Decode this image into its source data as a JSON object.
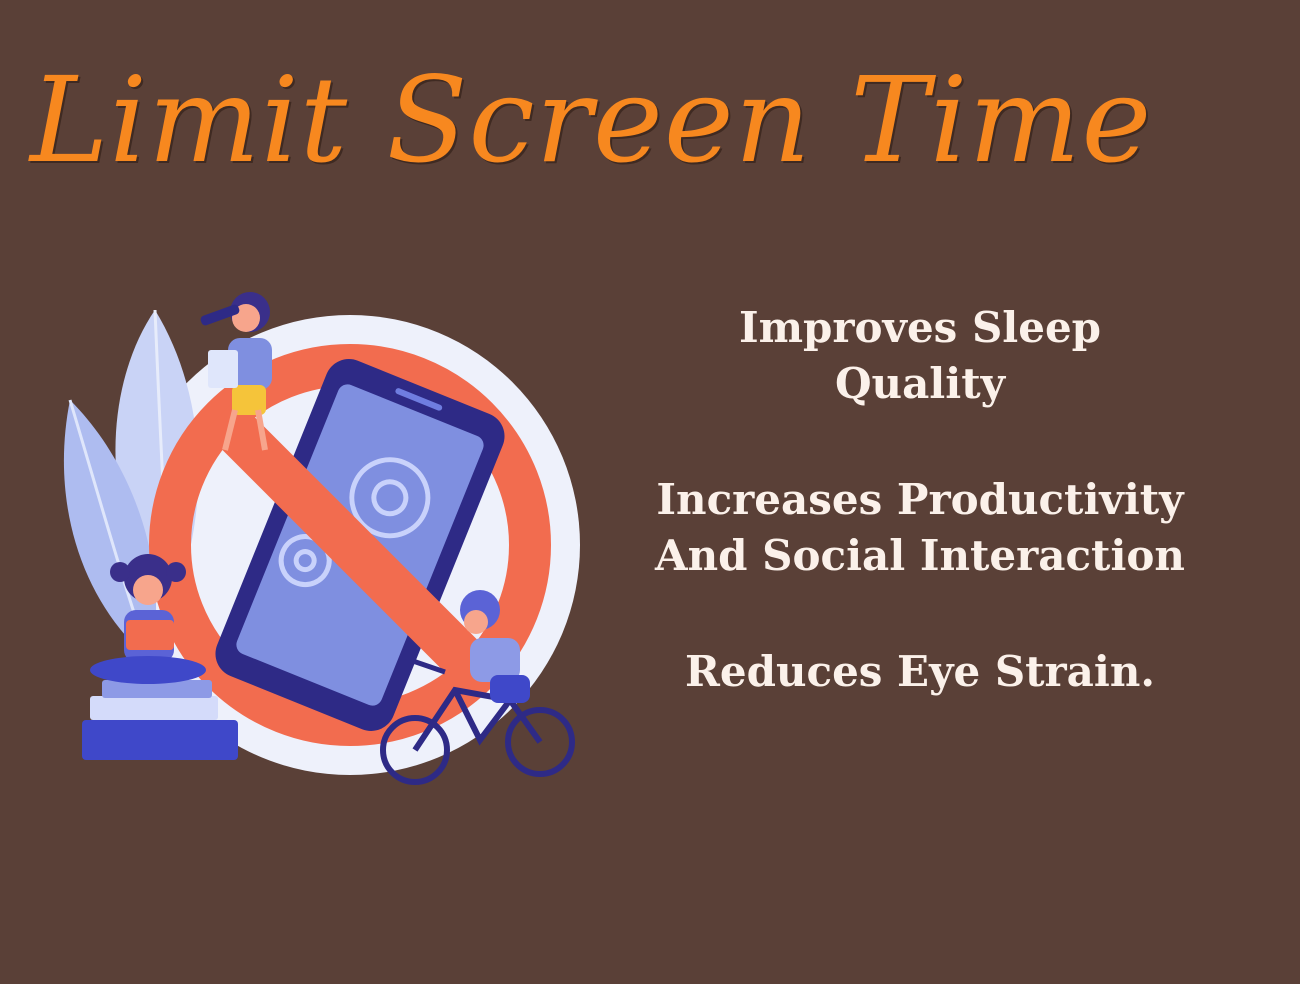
{
  "title": "Limit Screen Time",
  "benefits": [
    {
      "lines": [
        "Improves Sleep",
        "Quality"
      ]
    },
    {
      "lines": [
        "Increases Productivity",
        "And Social Interaction"
      ]
    },
    {
      "lines": [
        "Reduces Eye Strain."
      ]
    }
  ],
  "colors": {
    "background": "#5a4037",
    "title": "#f7881f",
    "text": "#fbf1ea",
    "ban_sign": "#f26c4f",
    "phone": "#2e2a86",
    "phone_screen": "#7f8fe0",
    "circle": "#eef1fb"
  },
  "illustration": {
    "icons": [
      "no-phone-icon",
      "gear-icon",
      "bicycle-icon",
      "book-stack-icon",
      "leaf-icon"
    ]
  }
}
